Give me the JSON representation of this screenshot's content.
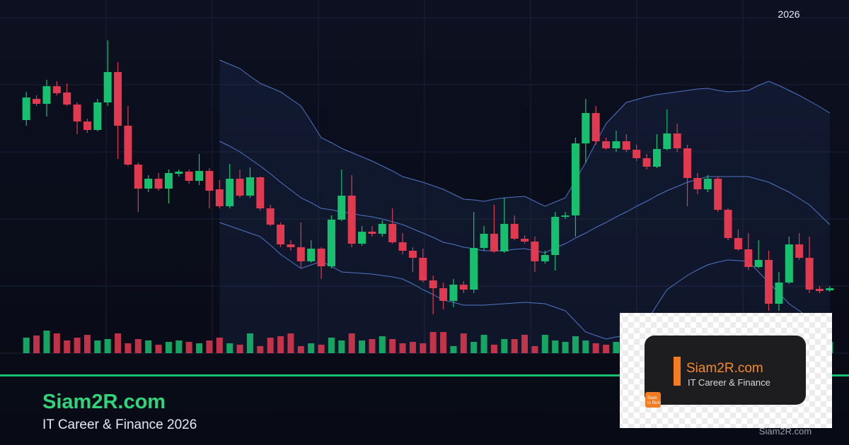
{
  "header_year": "2026",
  "brand": {
    "name": "Siam2R.com",
    "tagline": "IT Career & Finance 2026"
  },
  "logo": {
    "name": "Siam2R.com",
    "tagline": "IT Career & Finance",
    "badge": [
      "Siam",
      "to Rich"
    ]
  },
  "watermark": "Siam2R.com",
  "chart_data": {
    "type": "candlestick",
    "ylim": [
      0,
      480
    ],
    "up_color": "#17c06f",
    "down_color": "#e03a50",
    "band_color": "#5b86e0",
    "open": [
      330,
      360,
      353,
      378,
      369,
      352,
      328,
      316,
      355,
      398,
      322,
      267,
      233,
      247,
      233,
      254,
      257,
      244,
      258,
      232,
      208,
      247,
      223,
      249,
      205,
      182,
      154,
      150,
      130,
      148,
      123,
      189,
      223,
      155,
      172,
      169,
      183,
      157,
      145,
      135,
      103,
      92,
      74,
      97,
      90,
      149,
      169,
      144,
      183,
      162,
      158,
      130,
      139,
      193,
      195,
      297,
      340,
      300,
      290,
      300,
      288,
      276,
      264,
      289,
      311,
      290,
      248,
      232,
      247,
      203,
      163,
      147,
      122,
      132,
      70,
      100,
      154,
      135,
      91,
      89
    ],
    "high": [
      370,
      365,
      387,
      385,
      382,
      355,
      332,
      360,
      443,
      412,
      350,
      270,
      252,
      255,
      260,
      260,
      260,
      282,
      262,
      245,
      268,
      260,
      263,
      250,
      210,
      185,
      160,
      185,
      160,
      150,
      195,
      260,
      252,
      180,
      180,
      188,
      205,
      170,
      150,
      148,
      110,
      100,
      105,
      102,
      200,
      180,
      210,
      220,
      195,
      167,
      165,
      145,
      200,
      200,
      305,
      360,
      350,
      305,
      315,
      310,
      295,
      282,
      310,
      345,
      325,
      295,
      255,
      252,
      250,
      205,
      175,
      170,
      160,
      145,
      115,
      165,
      170,
      165,
      95,
      95
    ],
    "low": [
      322,
      350,
      335,
      365,
      350,
      310,
      312,
      314,
      350,
      275,
      265,
      200,
      228,
      230,
      212,
      250,
      240,
      238,
      205,
      205,
      205,
      220,
      220,
      202,
      180,
      150,
      145,
      120,
      128,
      105,
      120,
      187,
      150,
      152,
      165,
      165,
      155,
      140,
      115,
      100,
      55,
      62,
      65,
      85,
      85,
      145,
      142,
      142,
      160,
      155,
      115,
      127,
      117,
      190,
      165,
      270,
      295,
      288,
      285,
      285,
      272,
      260,
      262,
      287,
      285,
      208,
      225,
      228,
      200,
      160,
      145,
      118,
      120,
      60,
      60,
      98,
      132,
      85,
      85,
      87
    ],
    "close": [
      362,
      353,
      378,
      368,
      352,
      328,
      316,
      355,
      398,
      322,
      267,
      233,
      247,
      233,
      255,
      257,
      244,
      258,
      230,
      208,
      247,
      223,
      249,
      205,
      182,
      154,
      150,
      130,
      148,
      123,
      189,
      223,
      155,
      172,
      169,
      183,
      157,
      145,
      135,
      103,
      92,
      74,
      97,
      90,
      149,
      169,
      144,
      183,
      162,
      158,
      130,
      139,
      193,
      195,
      297,
      340,
      300,
      290,
      300,
      288,
      276,
      264,
      289,
      311,
      290,
      248,
      232,
      247,
      203,
      163,
      147,
      122,
      132,
      70,
      100,
      154,
      135,
      90,
      88,
      92
    ],
    "volume": [
      22,
      25,
      32,
      28,
      18,
      22,
      26,
      18,
      20,
      28,
      14,
      20,
      18,
      12,
      16,
      18,
      16,
      14,
      18,
      22,
      14,
      12,
      28,
      10,
      22,
      24,
      28,
      10,
      14,
      12,
      22,
      18,
      28,
      18,
      20,
      24,
      20,
      14,
      16,
      14,
      30,
      30,
      10,
      28,
      16,
      26,
      12,
      20,
      20,
      26,
      10,
      26,
      18,
      16,
      24,
      18,
      14,
      12,
      16,
      26,
      20,
      14,
      20,
      20,
      16,
      12,
      18,
      14,
      22,
      14,
      22,
      12,
      20,
      18,
      22,
      14,
      20,
      22,
      18,
      16
    ],
    "bands": [
      {
        "values": [
          null,
          null,
          null,
          null,
          null,
          null,
          null,
          null,
          null,
          null,
          null,
          null,
          null,
          null,
          null,
          null,
          null,
          null,
          null,
          415,
          409,
          403,
          392,
          382,
          376,
          370,
          360,
          350,
          328,
          305,
          298,
          290,
          284,
          278,
          272,
          265,
          258,
          250,
          246,
          242,
          237,
          232,
          225,
          218,
          217,
          215,
          218,
          220,
          221,
          222,
          215,
          208,
          214,
          220,
          245,
          270,
          298,
          325,
          340,
          355,
          359,
          363,
          366,
          368,
          370,
          372,
          374,
          375,
          372,
          370,
          371,
          372,
          379,
          385,
          379,
          372,
          365,
          357,
          349,
          340
        ]
      },
      {
        "values": [
          null,
          null,
          null,
          null,
          null,
          null,
          null,
          null,
          null,
          null,
          null,
          null,
          null,
          null,
          null,
          null,
          null,
          null,
          null,
          300,
          293,
          285,
          275,
          265,
          254,
          242,
          231,
          220,
          213,
          205,
          203,
          200,
          198,
          195,
          193,
          190,
          186,
          182,
          176,
          170,
          164,
          157,
          154,
          150,
          148,
          145,
          145,
          145,
          147,
          148,
          145,
          142,
          149,
          155,
          163,
          170,
          178,
          185,
          193,
          200,
          208,
          215,
          223,
          230,
          236,
          242,
          246,
          250,
          250,
          250,
          250,
          250,
          246,
          242,
          235,
          228,
          219,
          210,
          196,
          182
        ]
      },
      {
        "values": [
          null,
          null,
          null,
          null,
          null,
          null,
          null,
          null,
          null,
          null,
          null,
          null,
          null,
          null,
          null,
          null,
          null,
          null,
          null,
          185,
          180,
          175,
          170,
          165,
          153,
          140,
          130,
          120,
          125,
          130,
          123,
          115,
          114,
          113,
          112,
          110,
          108,
          105,
          98,
          90,
          83,
          75,
          72,
          68,
          68,
          68,
          69,
          70,
          71,
          72,
          71,
          70,
          65,
          60,
          45,
          30,
          25,
          20,
          23,
          25,
          35,
          45,
          68,
          90,
          100,
          110,
          118,
          125,
          129,
          132,
          131,
          130,
          115,
          100,
          85,
          70,
          60,
          50,
          48,
          45
        ]
      }
    ]
  }
}
